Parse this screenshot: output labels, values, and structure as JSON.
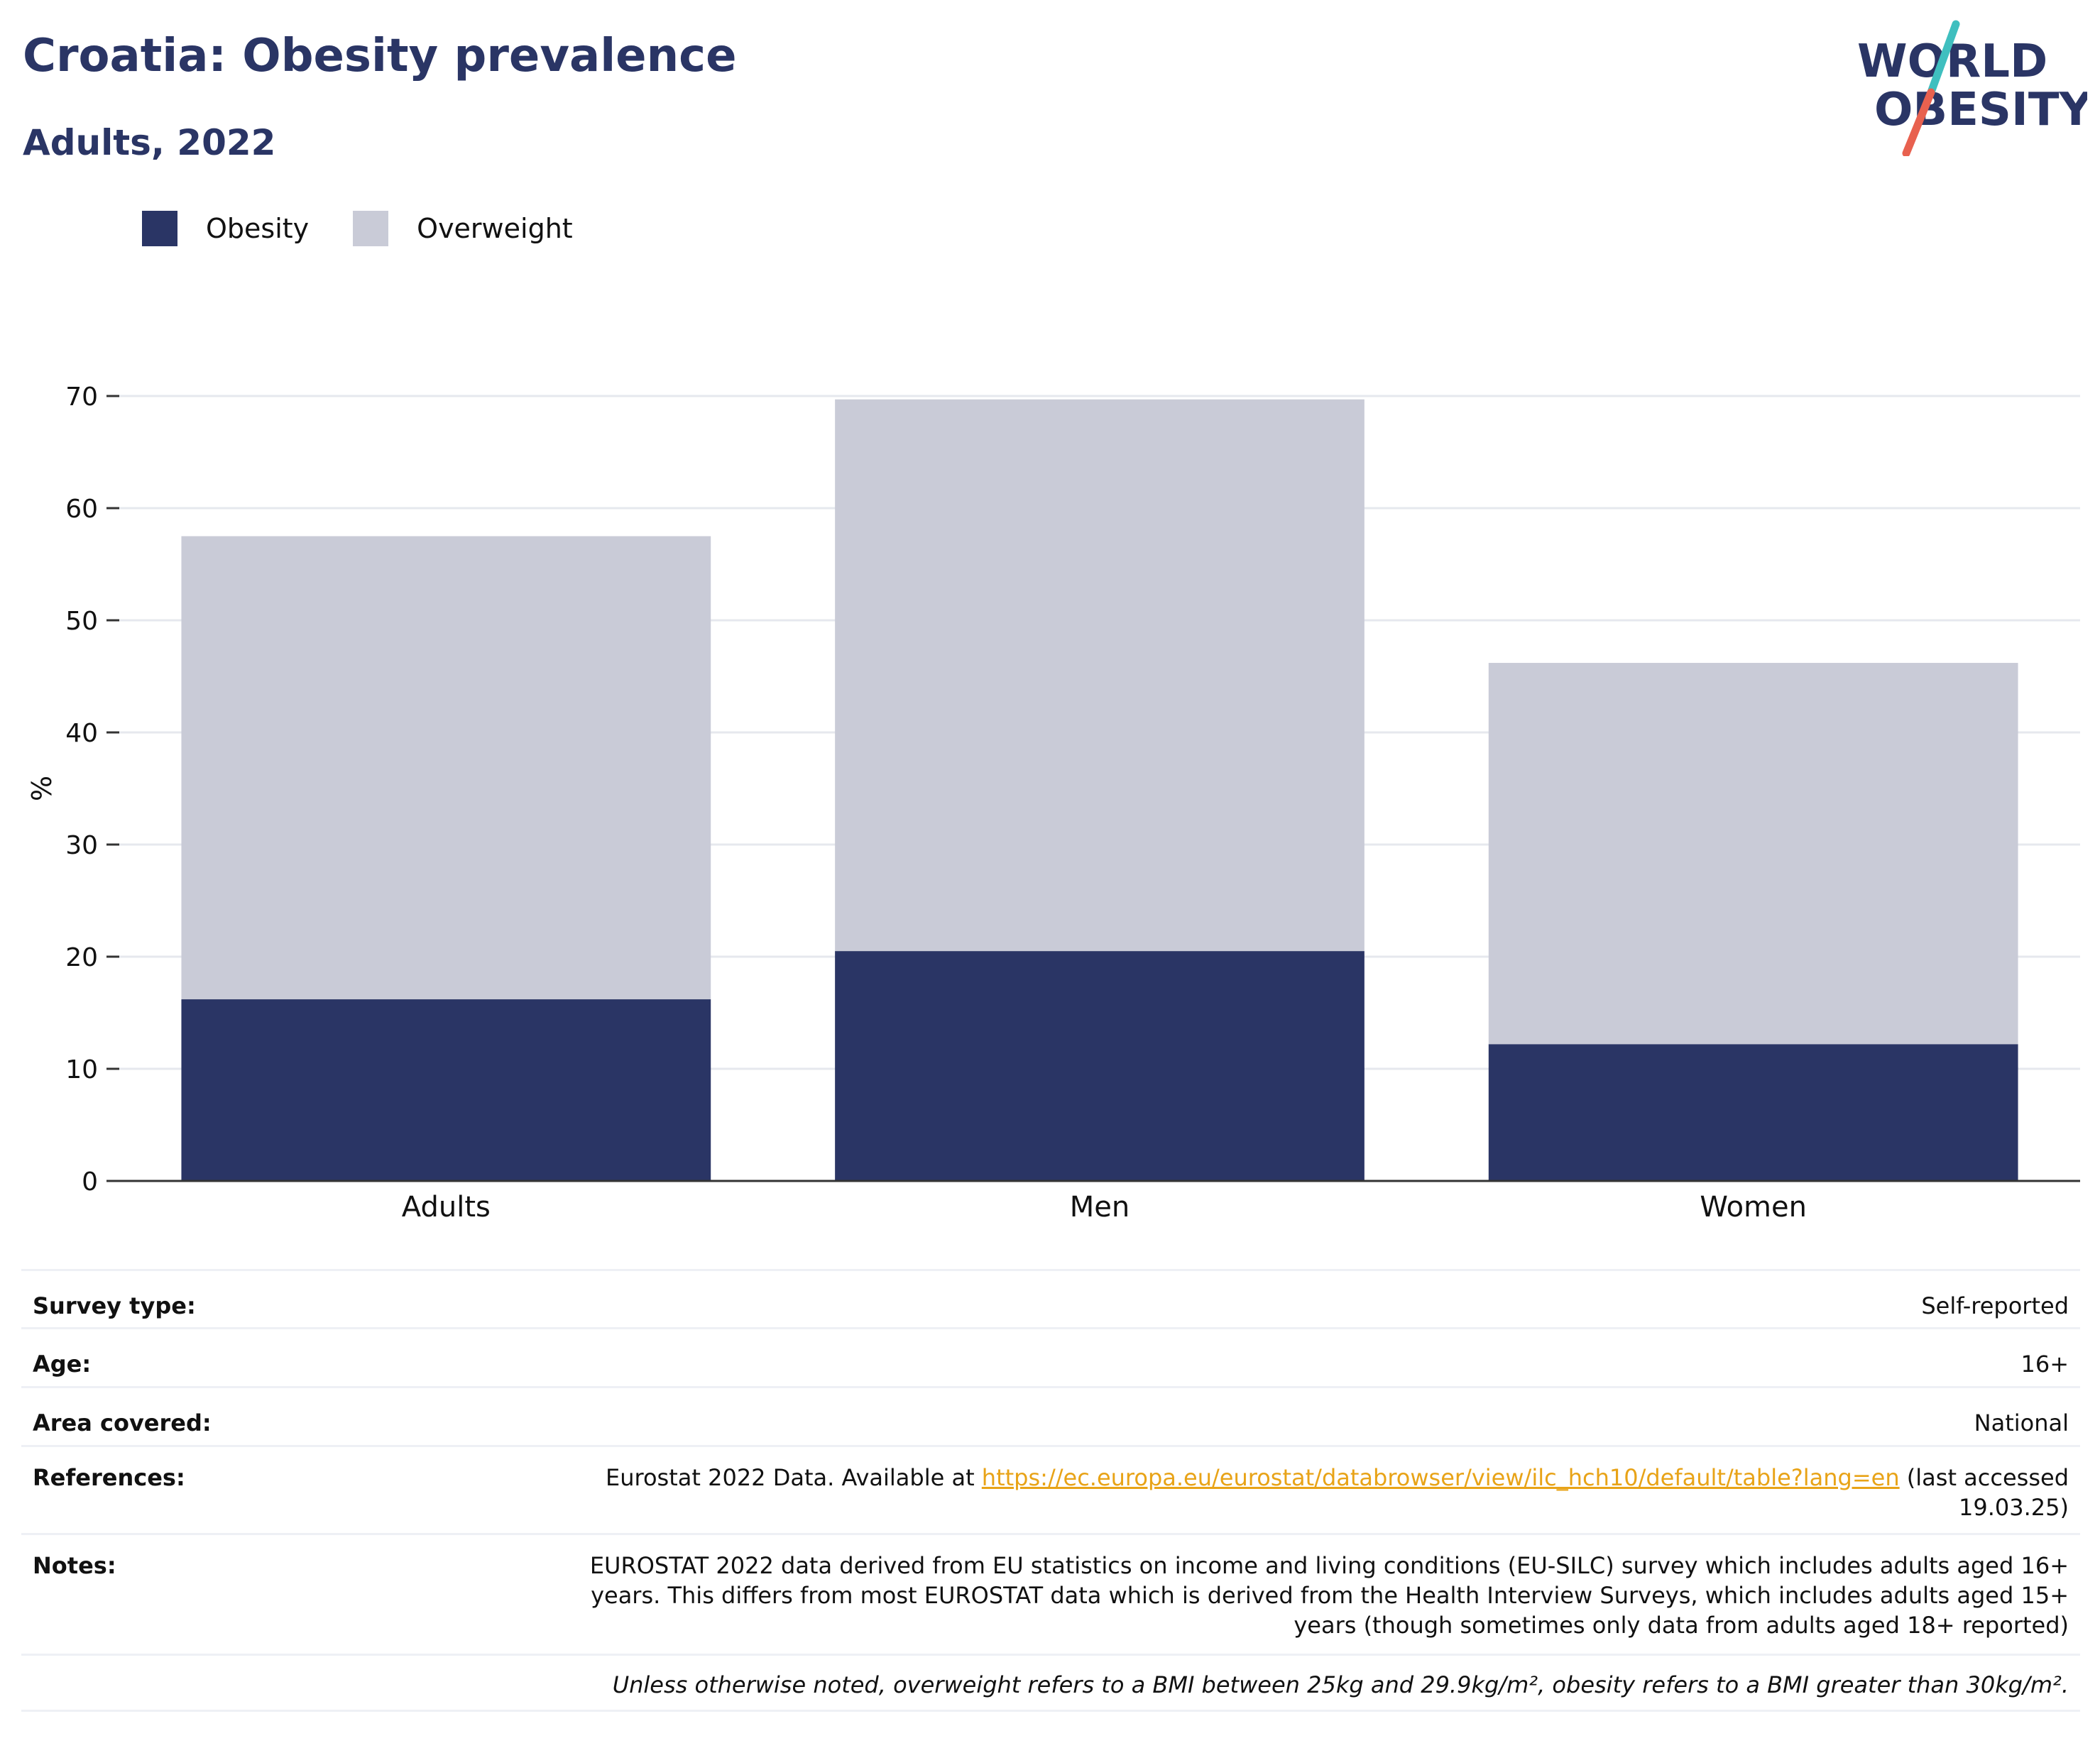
{
  "header": {
    "title": "Croatia: Obesity prevalence",
    "subtitle": "Adults, 2022"
  },
  "logo": {
    "line1": "WORLD",
    "line2": "OBESITY",
    "text_color": "#2a3565",
    "slash_top_color": "#3fbfbf",
    "slash_bottom_color": "#e8614f"
  },
  "legend": {
    "items": [
      {
        "label": "Obesity",
        "color": "#2a3565"
      },
      {
        "label": "Overweight",
        "color": "#c9cbd7"
      }
    ]
  },
  "chart_data": {
    "type": "bar",
    "stacked": true,
    "categories": [
      "Adults",
      "Men",
      "Women"
    ],
    "series": [
      {
        "name": "Obesity",
        "values": [
          16.2,
          20.5,
          12.2
        ],
        "color": "#2a3565"
      },
      {
        "name": "Overweight",
        "values": [
          41.3,
          49.2,
          34.0
        ],
        "color": "#c9cbd7"
      }
    ],
    "title": "",
    "xlabel": "",
    "ylabel": "%",
    "ylim": [
      0,
      70
    ],
    "yticks": [
      0,
      10,
      20,
      30,
      40,
      50,
      60,
      70
    ],
    "grid": true,
    "legend_position": "top-left"
  },
  "meta": {
    "survey_type_label": "Survey type:",
    "survey_type_value": "Self-reported",
    "age_label": "Age:",
    "age_value": "16+",
    "area_label": "Area covered:",
    "area_value": "National",
    "references_label": "References:",
    "references_prefix": "Eurostat 2022 Data. Available at ",
    "references_link": "https://ec.europa.eu/eurostat/databrowser/view/ilc_hch10/default/table?lang=en",
    "references_suffix": " (last accessed 19.03.25)",
    "notes_label": "Notes:",
    "notes_value": "EUROSTAT 2022 data derived from EU statistics on income and living conditions (EU-SILC) survey which includes adults aged 16+ years. This differs from most EUROSTAT data which is derived from the Health Interview Surveys, which includes adults aged 15+ years (though sometimes only data from adults aged 18+ reported)",
    "bmi_note": "Unless otherwise noted, overweight refers to a BMI between 25kg and 29.9kg/m², obesity refers to a BMI greater than 30kg/m²."
  }
}
